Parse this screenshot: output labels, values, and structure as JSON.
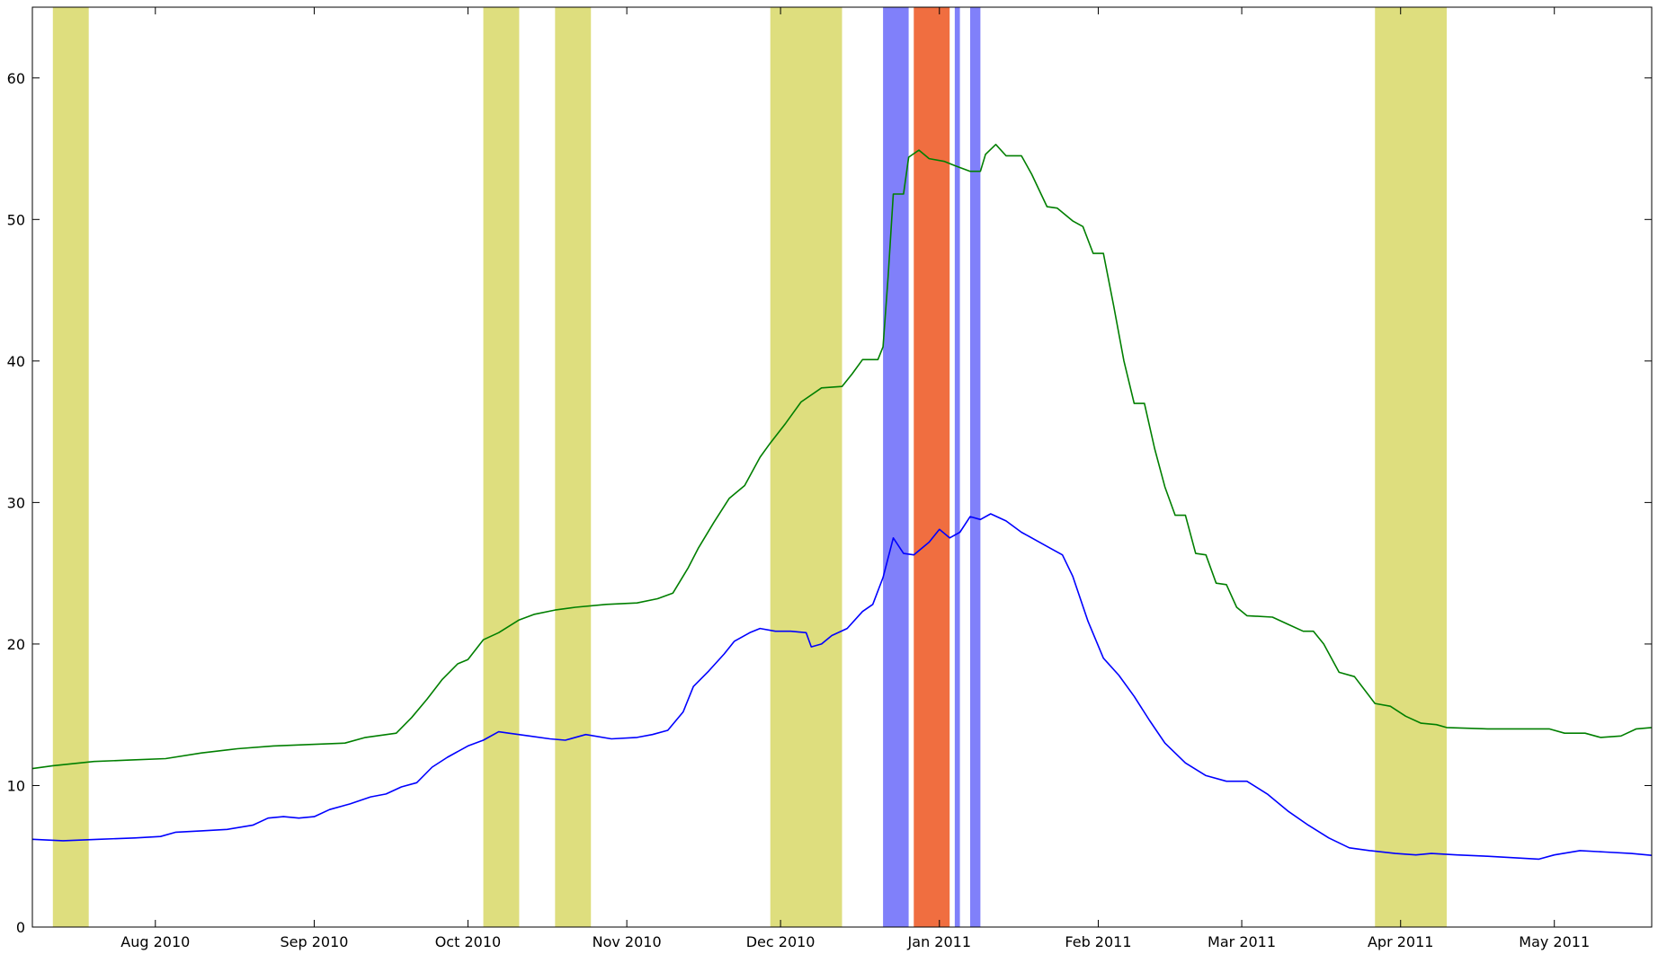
{
  "chart_data": {
    "type": "line",
    "title": "",
    "xlabel": "",
    "ylabel": "",
    "xlim": [
      "2010-07-08",
      "2011-05-20"
    ],
    "ylim": [
      0,
      65
    ],
    "grid": false,
    "legend": "none",
    "x_ticks": [
      {
        "date": "2010-08-01",
        "label": "Aug 2010"
      },
      {
        "date": "2010-09-01",
        "label": "Sep 2010"
      },
      {
        "date": "2010-10-01",
        "label": "Oct 2010"
      },
      {
        "date": "2010-11-01",
        "label": "Nov 2010"
      },
      {
        "date": "2010-12-01",
        "label": "Dec 2010"
      },
      {
        "date": "2011-01-01",
        "label": "Jan 2011"
      },
      {
        "date": "2011-02-01",
        "label": "Feb 2011"
      },
      {
        "date": "2011-03-01",
        "label": "Mar 2011"
      },
      {
        "date": "2011-04-01",
        "label": "Apr 2011"
      },
      {
        "date": "2011-05-01",
        "label": "May 2011"
      }
    ],
    "y_ticks": [
      {
        "value": 0,
        "label": "0"
      },
      {
        "value": 10,
        "label": "10"
      },
      {
        "value": 20,
        "label": "20"
      },
      {
        "value": 30,
        "label": "30"
      },
      {
        "value": 40,
        "label": "40"
      },
      {
        "value": 50,
        "label": "50"
      },
      {
        "value": 60,
        "label": "60"
      }
    ],
    "bands": [
      {
        "start": "2010-07-12",
        "end": "2010-07-19",
        "color": "#dede7e"
      },
      {
        "start": "2010-10-04",
        "end": "2010-10-11",
        "color": "#dede7e"
      },
      {
        "start": "2010-10-18",
        "end": "2010-10-25",
        "color": "#dede7e"
      },
      {
        "start": "2010-11-29",
        "end": "2010-12-13",
        "color": "#dede7e"
      },
      {
        "start": "2010-12-21",
        "end": "2010-12-26",
        "color": "#8080fa"
      },
      {
        "start": "2010-12-27",
        "end": "2011-01-03",
        "color": "#f06e40"
      },
      {
        "start": "2011-01-04",
        "end": "2011-01-05",
        "color": "#8080fa"
      },
      {
        "start": "2011-01-07",
        "end": "2011-01-09",
        "color": "#8080fa"
      },
      {
        "start": "2011-03-27",
        "end": "2011-04-10",
        "color": "#dede7e"
      }
    ],
    "series": [
      {
        "color": "#007f00",
        "points": [
          [
            "2010-07-08",
            11.2
          ],
          [
            "2010-07-12",
            11.4
          ],
          [
            "2010-07-20",
            11.7
          ],
          [
            "2010-07-27",
            11.8
          ],
          [
            "2010-08-03",
            11.9
          ],
          [
            "2010-08-10",
            12.3
          ],
          [
            "2010-08-17",
            12.6
          ],
          [
            "2010-08-24",
            12.8
          ],
          [
            "2010-08-31",
            12.9
          ],
          [
            "2010-09-07",
            13.0
          ],
          [
            "2010-09-11",
            13.4
          ],
          [
            "2010-09-17",
            13.7
          ],
          [
            "2010-09-20",
            14.8
          ],
          [
            "2010-09-23",
            16.1
          ],
          [
            "2010-09-26",
            17.5
          ],
          [
            "2010-09-29",
            18.6
          ],
          [
            "2010-10-01",
            18.9
          ],
          [
            "2010-10-04",
            20.3
          ],
          [
            "2010-10-07",
            20.8
          ],
          [
            "2010-10-11",
            21.7
          ],
          [
            "2010-10-14",
            22.1
          ],
          [
            "2010-10-18",
            22.4
          ],
          [
            "2010-10-22",
            22.6
          ],
          [
            "2010-10-28",
            22.8
          ],
          [
            "2010-11-03",
            22.9
          ],
          [
            "2010-11-07",
            23.2
          ],
          [
            "2010-11-10",
            23.6
          ],
          [
            "2010-11-13",
            25.4
          ],
          [
            "2010-11-15",
            26.8
          ],
          [
            "2010-11-18",
            28.6
          ],
          [
            "2010-11-21",
            30.3
          ],
          [
            "2010-11-24",
            31.2
          ],
          [
            "2010-11-27",
            33.2
          ],
          [
            "2010-11-29",
            34.2
          ],
          [
            "2010-12-02",
            35.6
          ],
          [
            "2010-12-05",
            37.1
          ],
          [
            "2010-12-09",
            38.1
          ],
          [
            "2010-12-13",
            38.2
          ],
          [
            "2010-12-15",
            39.1
          ],
          [
            "2010-12-17",
            40.1
          ],
          [
            "2010-12-20",
            40.1
          ],
          [
            "2010-12-21",
            41.0
          ],
          [
            "2010-12-22",
            46.0
          ],
          [
            "2010-12-23",
            51.8
          ],
          [
            "2010-12-25",
            51.8
          ],
          [
            "2010-12-26",
            54.4
          ],
          [
            "2010-12-28",
            54.9
          ],
          [
            "2010-12-30",
            54.3
          ],
          [
            "2011-01-02",
            54.1
          ],
          [
            "2011-01-04",
            53.8
          ],
          [
            "2011-01-07",
            53.4
          ],
          [
            "2011-01-09",
            53.4
          ],
          [
            "2011-01-10",
            54.6
          ],
          [
            "2011-01-12",
            55.3
          ],
          [
            "2011-01-14",
            54.5
          ],
          [
            "2011-01-17",
            54.5
          ],
          [
            "2011-01-19",
            53.2
          ],
          [
            "2011-01-22",
            50.9
          ],
          [
            "2011-01-24",
            50.8
          ],
          [
            "2011-01-27",
            49.9
          ],
          [
            "2011-01-29",
            49.5
          ],
          [
            "2011-01-31",
            47.6
          ],
          [
            "2011-02-02",
            47.6
          ],
          [
            "2011-02-04",
            43.9
          ],
          [
            "2011-02-06",
            40.0
          ],
          [
            "2011-02-08",
            37.0
          ],
          [
            "2011-02-10",
            37.0
          ],
          [
            "2011-02-12",
            33.8
          ],
          [
            "2011-02-14",
            31.1
          ],
          [
            "2011-02-16",
            29.1
          ],
          [
            "2011-02-18",
            29.1
          ],
          [
            "2011-02-20",
            26.4
          ],
          [
            "2011-02-22",
            26.3
          ],
          [
            "2011-02-24",
            24.3
          ],
          [
            "2011-02-26",
            24.2
          ],
          [
            "2011-02-28",
            22.6
          ],
          [
            "2011-03-02",
            22.0
          ],
          [
            "2011-03-07",
            21.9
          ],
          [
            "2011-03-10",
            21.4
          ],
          [
            "2011-03-13",
            20.9
          ],
          [
            "2011-03-15",
            20.9
          ],
          [
            "2011-03-17",
            20.0
          ],
          [
            "2011-03-20",
            18.0
          ],
          [
            "2011-03-23",
            17.7
          ],
          [
            "2011-03-27",
            15.8
          ],
          [
            "2011-03-30",
            15.6
          ],
          [
            "2011-04-02",
            14.9
          ],
          [
            "2011-04-05",
            14.4
          ],
          [
            "2011-04-08",
            14.3
          ],
          [
            "2011-04-10",
            14.1
          ],
          [
            "2011-04-18",
            14.0
          ],
          [
            "2011-04-25",
            14.0
          ],
          [
            "2011-04-30",
            14.0
          ],
          [
            "2011-05-03",
            13.7
          ],
          [
            "2011-05-07",
            13.7
          ],
          [
            "2011-05-10",
            13.4
          ],
          [
            "2011-05-14",
            13.5
          ],
          [
            "2011-05-17",
            14.0
          ],
          [
            "2011-05-20",
            14.1
          ],
          [
            "2011-05-24",
            14.5
          ],
          [
            "2011-05-28",
            14.6
          ],
          [
            "2011-06-01",
            14.6
          ]
        ]
      },
      {
        "color": "#0000ff",
        "points": [
          [
            "2010-07-08",
            6.2
          ],
          [
            "2010-07-14",
            6.1
          ],
          [
            "2010-07-21",
            6.2
          ],
          [
            "2010-07-28",
            6.3
          ],
          [
            "2010-08-02",
            6.4
          ],
          [
            "2010-08-05",
            6.7
          ],
          [
            "2010-08-10",
            6.8
          ],
          [
            "2010-08-15",
            6.9
          ],
          [
            "2010-08-20",
            7.2
          ],
          [
            "2010-08-23",
            7.7
          ],
          [
            "2010-08-26",
            7.8
          ],
          [
            "2010-08-29",
            7.7
          ],
          [
            "2010-09-01",
            7.8
          ],
          [
            "2010-09-04",
            8.3
          ],
          [
            "2010-09-08",
            8.7
          ],
          [
            "2010-09-12",
            9.2
          ],
          [
            "2010-09-15",
            9.4
          ],
          [
            "2010-09-18",
            9.9
          ],
          [
            "2010-09-21",
            10.2
          ],
          [
            "2010-09-24",
            11.3
          ],
          [
            "2010-09-27",
            12.0
          ],
          [
            "2010-10-01",
            12.8
          ],
          [
            "2010-10-04",
            13.2
          ],
          [
            "2010-10-07",
            13.8
          ],
          [
            "2010-10-09",
            13.7
          ],
          [
            "2010-10-13",
            13.5
          ],
          [
            "2010-10-17",
            13.3
          ],
          [
            "2010-10-20",
            13.2
          ],
          [
            "2010-10-24",
            13.6
          ],
          [
            "2010-10-29",
            13.3
          ],
          [
            "2010-11-03",
            13.4
          ],
          [
            "2010-11-06",
            13.6
          ],
          [
            "2010-11-09",
            13.9
          ],
          [
            "2010-11-12",
            15.2
          ],
          [
            "2010-11-14",
            17.0
          ],
          [
            "2010-11-17",
            18.1
          ],
          [
            "2010-11-20",
            19.3
          ],
          [
            "2010-11-22",
            20.2
          ],
          [
            "2010-11-25",
            20.8
          ],
          [
            "2010-11-27",
            21.1
          ],
          [
            "2010-11-30",
            20.9
          ],
          [
            "2010-12-03",
            20.9
          ],
          [
            "2010-12-06",
            20.8
          ],
          [
            "2010-12-07",
            19.8
          ],
          [
            "2010-12-09",
            20.0
          ],
          [
            "2010-12-11",
            20.6
          ],
          [
            "2010-12-14",
            21.1
          ],
          [
            "2010-12-17",
            22.3
          ],
          [
            "2010-12-19",
            22.8
          ],
          [
            "2010-12-21",
            24.7
          ],
          [
            "2010-12-23",
            27.5
          ],
          [
            "2010-12-25",
            26.4
          ],
          [
            "2010-12-27",
            26.3
          ],
          [
            "2010-12-30",
            27.2
          ],
          [
            "2011-01-01",
            28.1
          ],
          [
            "2011-01-03",
            27.5
          ],
          [
            "2011-01-05",
            27.9
          ],
          [
            "2011-01-07",
            29.0
          ],
          [
            "2011-01-09",
            28.8
          ],
          [
            "2011-01-11",
            29.2
          ],
          [
            "2011-01-14",
            28.7
          ],
          [
            "2011-01-17",
            27.9
          ],
          [
            "2011-01-20",
            27.3
          ],
          [
            "2011-01-23",
            26.7
          ],
          [
            "2011-01-25",
            26.3
          ],
          [
            "2011-01-27",
            24.8
          ],
          [
            "2011-01-30",
            21.6
          ],
          [
            "2011-02-02",
            19.0
          ],
          [
            "2011-02-05",
            17.8
          ],
          [
            "2011-02-08",
            16.3
          ],
          [
            "2011-02-11",
            14.6
          ],
          [
            "2011-02-14",
            13.0
          ],
          [
            "2011-02-18",
            11.6
          ],
          [
            "2011-02-22",
            10.7
          ],
          [
            "2011-02-26",
            10.3
          ],
          [
            "2011-03-02",
            10.3
          ],
          [
            "2011-03-06",
            9.4
          ],
          [
            "2011-03-10",
            8.2
          ],
          [
            "2011-03-14",
            7.2
          ],
          [
            "2011-03-18",
            6.3
          ],
          [
            "2011-03-22",
            5.6
          ],
          [
            "2011-03-26",
            5.4
          ],
          [
            "2011-03-31",
            5.2
          ],
          [
            "2011-04-04",
            5.1
          ],
          [
            "2011-04-07",
            5.2
          ],
          [
            "2011-04-12",
            5.1
          ],
          [
            "2011-04-18",
            5.0
          ],
          [
            "2011-04-23",
            4.9
          ],
          [
            "2011-04-28",
            4.8
          ],
          [
            "2011-05-01",
            5.1
          ],
          [
            "2011-05-06",
            5.4
          ],
          [
            "2011-05-11",
            5.3
          ],
          [
            "2011-05-16",
            5.2
          ],
          [
            "2011-05-22",
            5.0
          ],
          [
            "2011-05-28",
            5.0
          ],
          [
            "2011-06-01",
            5.1
          ]
        ]
      }
    ]
  }
}
